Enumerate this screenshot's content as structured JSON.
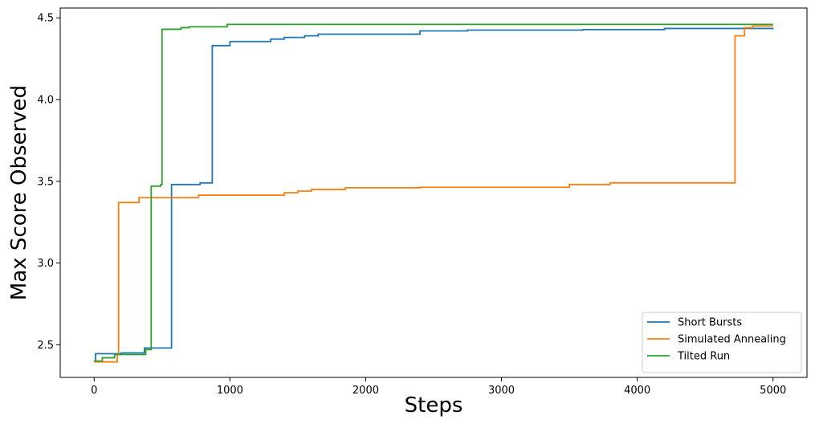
{
  "chart_data": {
    "type": "line",
    "drawstyle": "steps-post",
    "xlabel": "Steps",
    "ylabel": "Max Score Observed",
    "xlim": [
      -250,
      5250
    ],
    "xticks": [
      0,
      1000,
      2000,
      3000,
      4000,
      5000
    ],
    "ylim": [
      2.3,
      4.56
    ],
    "yticks": [
      2.5,
      {
        "value": 3,
        "label": "3.0"
      },
      3.5,
      {
        "value": 4,
        "label": "4.0"
      },
      4.5
    ],
    "grid": false,
    "legend": "lower right",
    "series": [
      {
        "name": "Short Bursts",
        "color": "#1f77b4",
        "x": [
          0,
          10,
          200,
          370,
          570,
          780,
          870,
          1000,
          1300,
          1400,
          1550,
          1650,
          2400,
          2750,
          3600,
          4200,
          5000
        ],
        "values": [
          2.4,
          2.445,
          2.45,
          2.48,
          3.48,
          3.49,
          4.33,
          4.355,
          4.37,
          4.38,
          4.39,
          4.4,
          4.42,
          4.425,
          4.428,
          4.435,
          4.437
        ]
      },
      {
        "name": "Simulated Annealing",
        "color": "#ff7f0e",
        "x": [
          0,
          170,
          180,
          330,
          770,
          1400,
          1500,
          1600,
          1850,
          2400,
          3500,
          3800,
          4720,
          4790,
          4850,
          5000
        ],
        "values": [
          2.395,
          2.44,
          3.37,
          3.4,
          3.415,
          3.43,
          3.44,
          3.45,
          3.46,
          3.463,
          3.48,
          3.49,
          4.39,
          4.44,
          4.45,
          4.45
        ]
      },
      {
        "name": "Tilted Run",
        "color": "#2ca02c",
        "x": [
          0,
          60,
          150,
          380,
          420,
          490,
          500,
          640,
          700,
          980,
          5000
        ],
        "values": [
          2.4,
          2.42,
          2.44,
          2.47,
          3.47,
          3.48,
          4.43,
          4.44,
          4.445,
          4.46,
          4.46
        ]
      }
    ]
  }
}
